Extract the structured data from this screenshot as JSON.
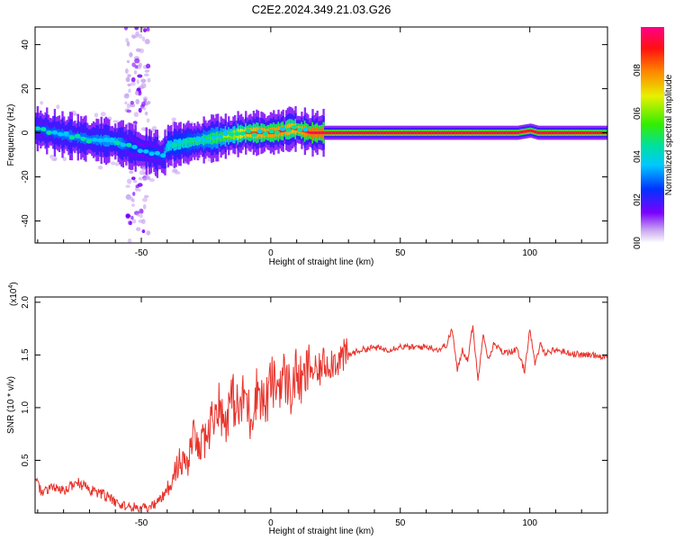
{
  "title": "C2E2.2024.349.21.03.G26",
  "chart_data": [
    {
      "type": "heatmap",
      "xlabel": "Height of straight line (km)",
      "ylabel": "Frequency (Hz)",
      "xlim": [
        -91,
        130
      ],
      "ylim": [
        -50,
        48
      ],
      "xticks": [
        -50,
        0,
        50,
        100
      ],
      "xtick_labels": [
        "-50",
        "0",
        "50",
        "100"
      ],
      "yticks": [
        -40,
        -20,
        0,
        20,
        40
      ],
      "ytick_labels": [
        "-40",
        "-20",
        "0",
        "20",
        "40"
      ],
      "colorbar": {
        "label": "Normalized spectral amplitude",
        "range": [
          0,
          1
        ],
        "ticks": [
          0.0,
          0.2,
          0.4,
          0.6,
          0.8
        ],
        "tick_labels": [
          "0.0",
          "0.2",
          "0.4",
          "0.6",
          "0.8"
        ],
        "colormap": "rainbow (violet-blue-cyan-green-yellow-red-magenta)"
      },
      "ridge": {
        "x": [
          -91,
          -80,
          -70,
          -60,
          -55,
          -50,
          -45,
          -42,
          -40,
          -35,
          -30,
          -25,
          -20,
          -15,
          -10,
          0,
          5,
          8,
          12,
          15,
          20,
          40,
          70,
          80,
          95,
          100,
          103,
          110,
          130
        ],
        "y": [
          2,
          -1,
          -3,
          -4,
          -6,
          -8,
          -9,
          -11,
          -6,
          -5,
          -4,
          -3,
          -2,
          -1,
          0,
          0,
          1,
          2,
          1,
          0,
          0,
          0,
          0,
          0,
          0,
          1,
          0,
          0,
          0
        ],
        "amplitude": [
          0.3,
          0.35,
          0.35,
          0.4,
          0.3,
          0.25,
          0.3,
          0.3,
          0.45,
          0.45,
          0.5,
          0.55,
          0.6,
          0.7,
          0.85,
          0.9,
          0.9,
          0.85,
          0.9,
          0.95,
          0.95,
          0.95,
          0.95,
          0.95,
          0.95,
          0.9,
          0.95,
          0.95,
          0.9
        ]
      },
      "scatter_band": {
        "x_range": [
          -56,
          -47
        ],
        "y_range": [
          -50,
          48
        ]
      }
    },
    {
      "type": "line",
      "xlabel": "Height of straight line (km)",
      "ylabel": "SNR (10 * v/v)",
      "y_multiplier_label": "(x10",
      "y_multiplier_exp": "4",
      "y_multiplier_close": ")",
      "xlim": [
        -91,
        130
      ],
      "ylim": [
        0,
        2.05
      ],
      "xticks": [
        -50,
        0,
        50,
        100
      ],
      "xtick_labels": [
        "-50",
        "0",
        "50",
        "100"
      ],
      "yticks": [
        0.5,
        1.0,
        1.5,
        2.0
      ],
      "ytick_labels": [
        "0.5",
        "1.0",
        "1.5",
        "2.0"
      ],
      "color": "#e8322a",
      "series": [
        {
          "x": [
            -91,
            -88,
            -85,
            -80,
            -75,
            -70,
            -65,
            -60,
            -55,
            -50,
            -47,
            -45,
            -42,
            -40,
            -38,
            -35,
            -32,
            -30,
            -28,
            -25,
            -22,
            -20,
            -18,
            -15,
            -12,
            -10,
            -8,
            -5,
            -2,
            0,
            2,
            5,
            8,
            10,
            12,
            15,
            18,
            20,
            25,
            30,
            35,
            40,
            45,
            50,
            55,
            60,
            65,
            68,
            70,
            72,
            74,
            76,
            78,
            80,
            82,
            84,
            86,
            90,
            95,
            98,
            100,
            102,
            104,
            106,
            110,
            115,
            120,
            125,
            130
          ],
          "y": [
            0.32,
            0.18,
            0.25,
            0.2,
            0.3,
            0.22,
            0.18,
            0.1,
            0.06,
            0.04,
            0.04,
            0.08,
            0.15,
            0.2,
            0.35,
            0.5,
            0.45,
            0.75,
            0.6,
            0.7,
            0.95,
            1.05,
            0.85,
            1.1,
            0.95,
            1.15,
            0.9,
            1.2,
            1.0,
            1.25,
            1.2,
            1.3,
            1.15,
            1.35,
            1.2,
            1.4,
            1.3,
            1.42,
            1.45,
            1.5,
            1.55,
            1.57,
            1.55,
            1.58,
            1.57,
            1.58,
            1.55,
            1.6,
            1.75,
            1.35,
            1.55,
            1.45,
            1.78,
            1.25,
            1.72,
            1.45,
            1.6,
            1.52,
            1.55,
            1.35,
            1.75,
            1.4,
            1.6,
            1.52,
            1.55,
            1.52,
            1.5,
            1.5,
            1.48
          ]
        }
      ]
    }
  ]
}
